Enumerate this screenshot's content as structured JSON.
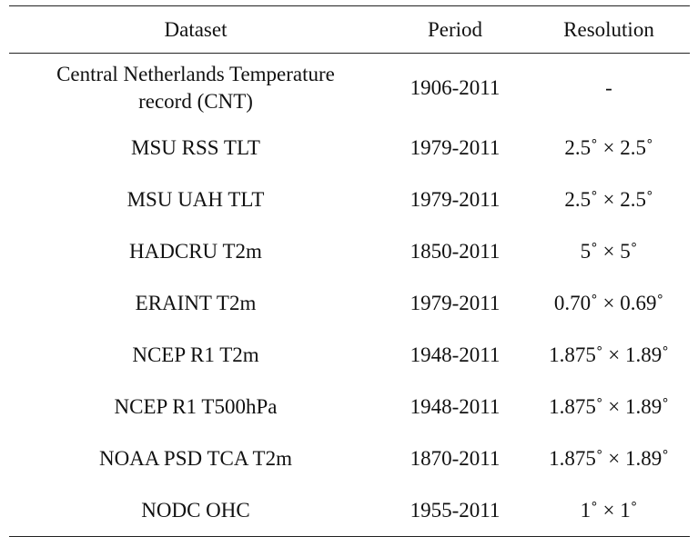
{
  "table": {
    "headers": [
      "Dataset",
      "Period",
      "Resolution"
    ],
    "rows": [
      {
        "dataset_line1": "Central Netherlands Temperature",
        "dataset_line2": "record (CNT)",
        "period": "1906-2011",
        "resolution": "-"
      },
      {
        "dataset": "MSU RSS TLT",
        "period": "1979-2011",
        "resolution": "2.5˚ × 2.5˚"
      },
      {
        "dataset": "MSU UAH TLT",
        "period": "1979-2011",
        "resolution": "2.5˚ × 2.5˚"
      },
      {
        "dataset": "HADCRU T2m",
        "period": "1850-2011",
        "resolution": "5˚ × 5˚"
      },
      {
        "dataset": "ERAINT T2m",
        "period": "1979-2011",
        "resolution": "0.70˚ × 0.69˚"
      },
      {
        "dataset": "NCEP R1 T2m",
        "period": "1948-2011",
        "resolution": "1.875˚ × 1.89˚"
      },
      {
        "dataset": "NCEP R1 T500hPa",
        "period": "1948-2011",
        "resolution": "1.875˚ × 1.89˚"
      },
      {
        "dataset": "NOAA PSD TCA T2m",
        "period": "1870-2011",
        "resolution": "1.875˚ × 1.89˚"
      },
      {
        "dataset": "NODC OHC",
        "period": "1955-2011",
        "resolution": "1˚ × 1˚"
      }
    ]
  }
}
